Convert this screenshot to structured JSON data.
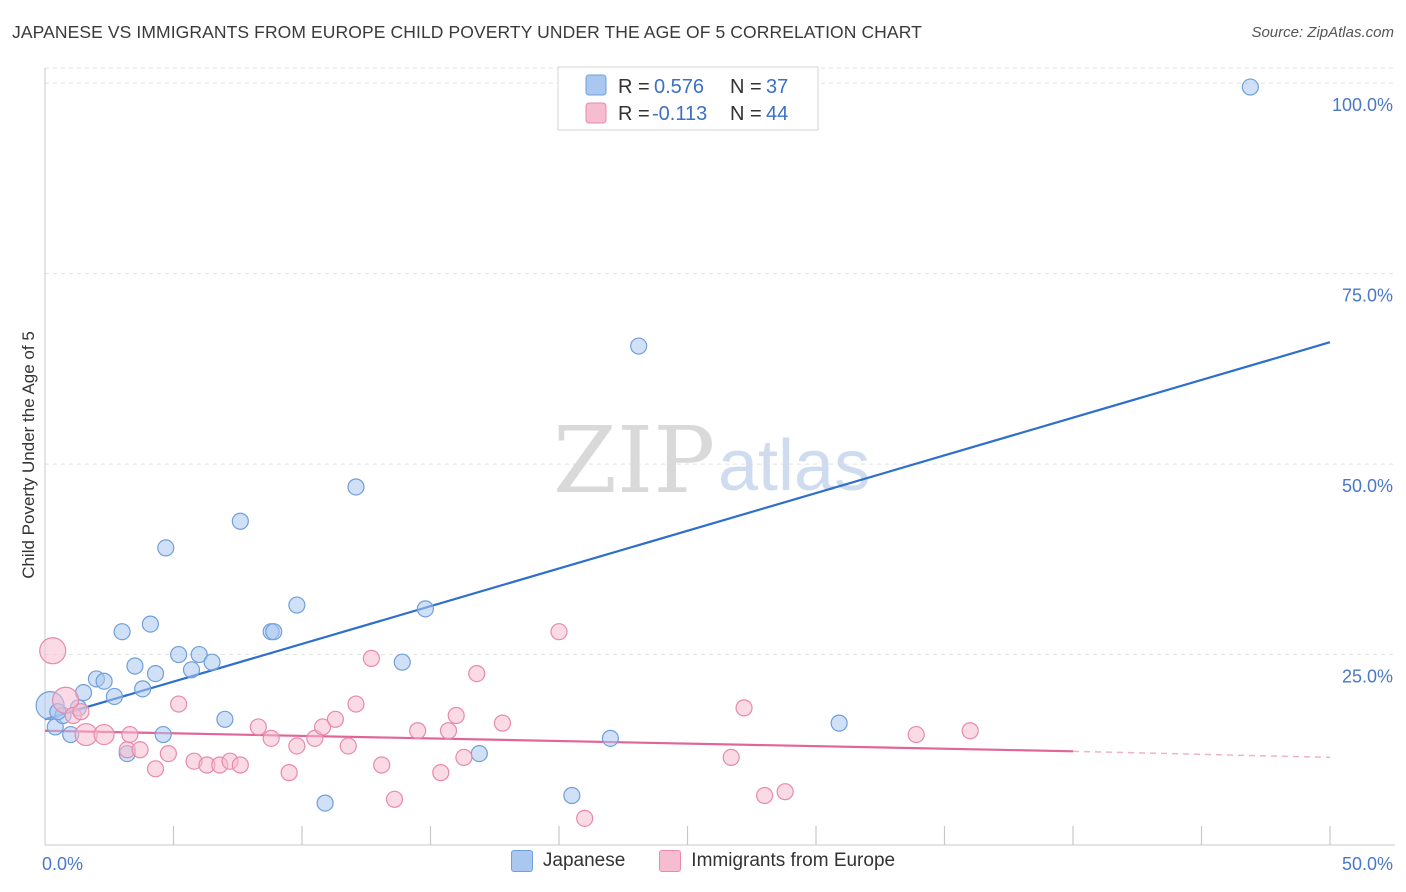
{
  "title": "JAPANESE VS IMMIGRANTS FROM EUROPE CHILD POVERTY UNDER THE AGE OF 5 CORRELATION CHART",
  "source": "Source: ZipAtlas.com",
  "watermark": {
    "zip": "ZIP",
    "atlas": "atlas"
  },
  "colors": {
    "japanese_fill": "#a9c7ef",
    "japanese_stroke": "#6f9fdc",
    "japanese_line": "#2f6fcc",
    "europe_fill": "#f6bcd0",
    "europe_stroke": "#e88aaa",
    "europe_line": "#e0669a",
    "tick_label": "#4a78c8"
  },
  "stats_legend": [
    {
      "r_label": "R =",
      "r_value": "0.576",
      "n_label": "N =",
      "n_value": "37"
    },
    {
      "r_label": "R =",
      "r_value": "-0.113",
      "n_label": "N =",
      "n_value": "44"
    }
  ],
  "chart_data": {
    "type": "scatter",
    "title": "JAPANESE VS IMMIGRANTS FROM EUROPE CHILD POVERTY UNDER THE AGE OF 5 CORRELATION CHART",
    "xlabel": "",
    "ylabel": "Child Poverty Under the Age of 5",
    "xlim": [
      0,
      50
    ],
    "ylim": [
      0,
      102
    ],
    "x_tick_labels": [
      "0.0%",
      "50.0%"
    ],
    "y_ticks": [
      25,
      50,
      75,
      100
    ],
    "y_tick_labels": [
      "25.0%",
      "50.0%",
      "75.0%",
      "100.0%"
    ],
    "grid": true,
    "legend": "top-center",
    "series": [
      {
        "name": "Japanese",
        "points": [
          [
            0.2,
            18.3,
            14
          ],
          [
            0.4,
            15.5,
            8
          ],
          [
            0.7,
            17.0,
            8
          ],
          [
            1.0,
            14.5,
            8
          ],
          [
            1.5,
            20.0,
            8
          ],
          [
            1.3,
            18.0,
            8
          ],
          [
            2.0,
            21.8,
            8
          ],
          [
            2.3,
            21.5,
            8
          ],
          [
            2.7,
            19.5,
            8
          ],
          [
            3.0,
            28.0,
            8
          ],
          [
            3.2,
            12.0,
            8
          ],
          [
            3.5,
            23.5,
            8
          ],
          [
            3.8,
            20.5,
            8
          ],
          [
            4.1,
            29.0,
            8
          ],
          [
            4.3,
            22.5,
            8
          ],
          [
            4.7,
            39.0,
            8
          ],
          [
            4.6,
            14.5,
            8
          ],
          [
            5.2,
            25.0,
            8
          ],
          [
            5.7,
            23.0,
            8
          ],
          [
            6.0,
            25.0,
            8
          ],
          [
            6.5,
            24.0,
            8
          ],
          [
            7.0,
            16.5,
            8
          ],
          [
            7.6,
            42.5,
            8
          ],
          [
            8.8,
            28.0,
            8
          ],
          [
            8.9,
            28.0,
            8
          ],
          [
            9.8,
            31.5,
            8
          ],
          [
            10.9,
            5.5,
            8
          ],
          [
            12.1,
            47.0,
            8
          ],
          [
            13.9,
            24.0,
            8
          ],
          [
            14.8,
            31.0,
            8
          ],
          [
            16.9,
            12.0,
            8
          ],
          [
            20.5,
            6.5,
            8
          ],
          [
            22.0,
            14.0,
            8
          ],
          [
            23.1,
            65.5,
            8
          ],
          [
            30.9,
            16.0,
            8
          ],
          [
            46.9,
            99.5,
            8
          ],
          [
            0.5,
            17.5,
            8
          ]
        ],
        "trend": {
          "x": [
            0,
            50
          ],
          "y": [
            16.5,
            66.0
          ]
        }
      },
      {
        "name": "Immigrants from Europe",
        "points": [
          [
            0.3,
            25.5,
            13
          ],
          [
            0.8,
            19.0,
            13
          ],
          [
            1.1,
            17.0,
            8
          ],
          [
            1.4,
            17.5,
            8
          ],
          [
            1.6,
            14.5,
            11
          ],
          [
            2.3,
            14.5,
            10
          ],
          [
            3.2,
            12.5,
            8
          ],
          [
            3.3,
            14.5,
            8
          ],
          [
            3.7,
            12.5,
            8
          ],
          [
            4.3,
            10.0,
            8
          ],
          [
            4.8,
            12.0,
            8
          ],
          [
            5.2,
            18.5,
            8
          ],
          [
            5.8,
            11.0,
            8
          ],
          [
            6.3,
            10.5,
            8
          ],
          [
            6.8,
            10.5,
            8
          ],
          [
            7.2,
            11.0,
            8
          ],
          [
            7.6,
            10.5,
            8
          ],
          [
            8.3,
            15.5,
            8
          ],
          [
            8.8,
            14.0,
            8
          ],
          [
            9.5,
            9.5,
            8
          ],
          [
            9.8,
            13.0,
            8
          ],
          [
            10.5,
            14.0,
            8
          ],
          [
            10.8,
            15.5,
            8
          ],
          [
            11.3,
            16.5,
            8
          ],
          [
            11.8,
            13.0,
            8
          ],
          [
            12.1,
            18.5,
            8
          ],
          [
            12.7,
            24.5,
            8
          ],
          [
            13.1,
            10.5,
            8
          ],
          [
            13.6,
            6.0,
            8
          ],
          [
            14.5,
            15.0,
            8
          ],
          [
            15.4,
            9.5,
            8
          ],
          [
            15.7,
            15.0,
            8
          ],
          [
            16.0,
            17.0,
            8
          ],
          [
            16.3,
            11.5,
            8
          ],
          [
            16.8,
            22.5,
            8
          ],
          [
            17.8,
            16.0,
            8
          ],
          [
            20.0,
            28.0,
            8
          ],
          [
            21.0,
            3.5,
            8
          ],
          [
            26.7,
            11.5,
            8
          ],
          [
            27.2,
            18.0,
            8
          ],
          [
            28.0,
            6.5,
            8
          ],
          [
            28.8,
            7.0,
            8
          ],
          [
            33.9,
            14.5,
            8
          ],
          [
            36.0,
            15.0,
            8
          ]
        ],
        "trend": {
          "x": [
            0,
            40
          ],
          "y": [
            15.0,
            12.3
          ]
        },
        "trend_dashed": {
          "x": [
            40,
            50
          ],
          "y": [
            12.3,
            11.5
          ]
        }
      }
    ]
  },
  "bottom_legend": [
    {
      "label": "Japanese"
    },
    {
      "label": "Immigrants from Europe"
    }
  ]
}
